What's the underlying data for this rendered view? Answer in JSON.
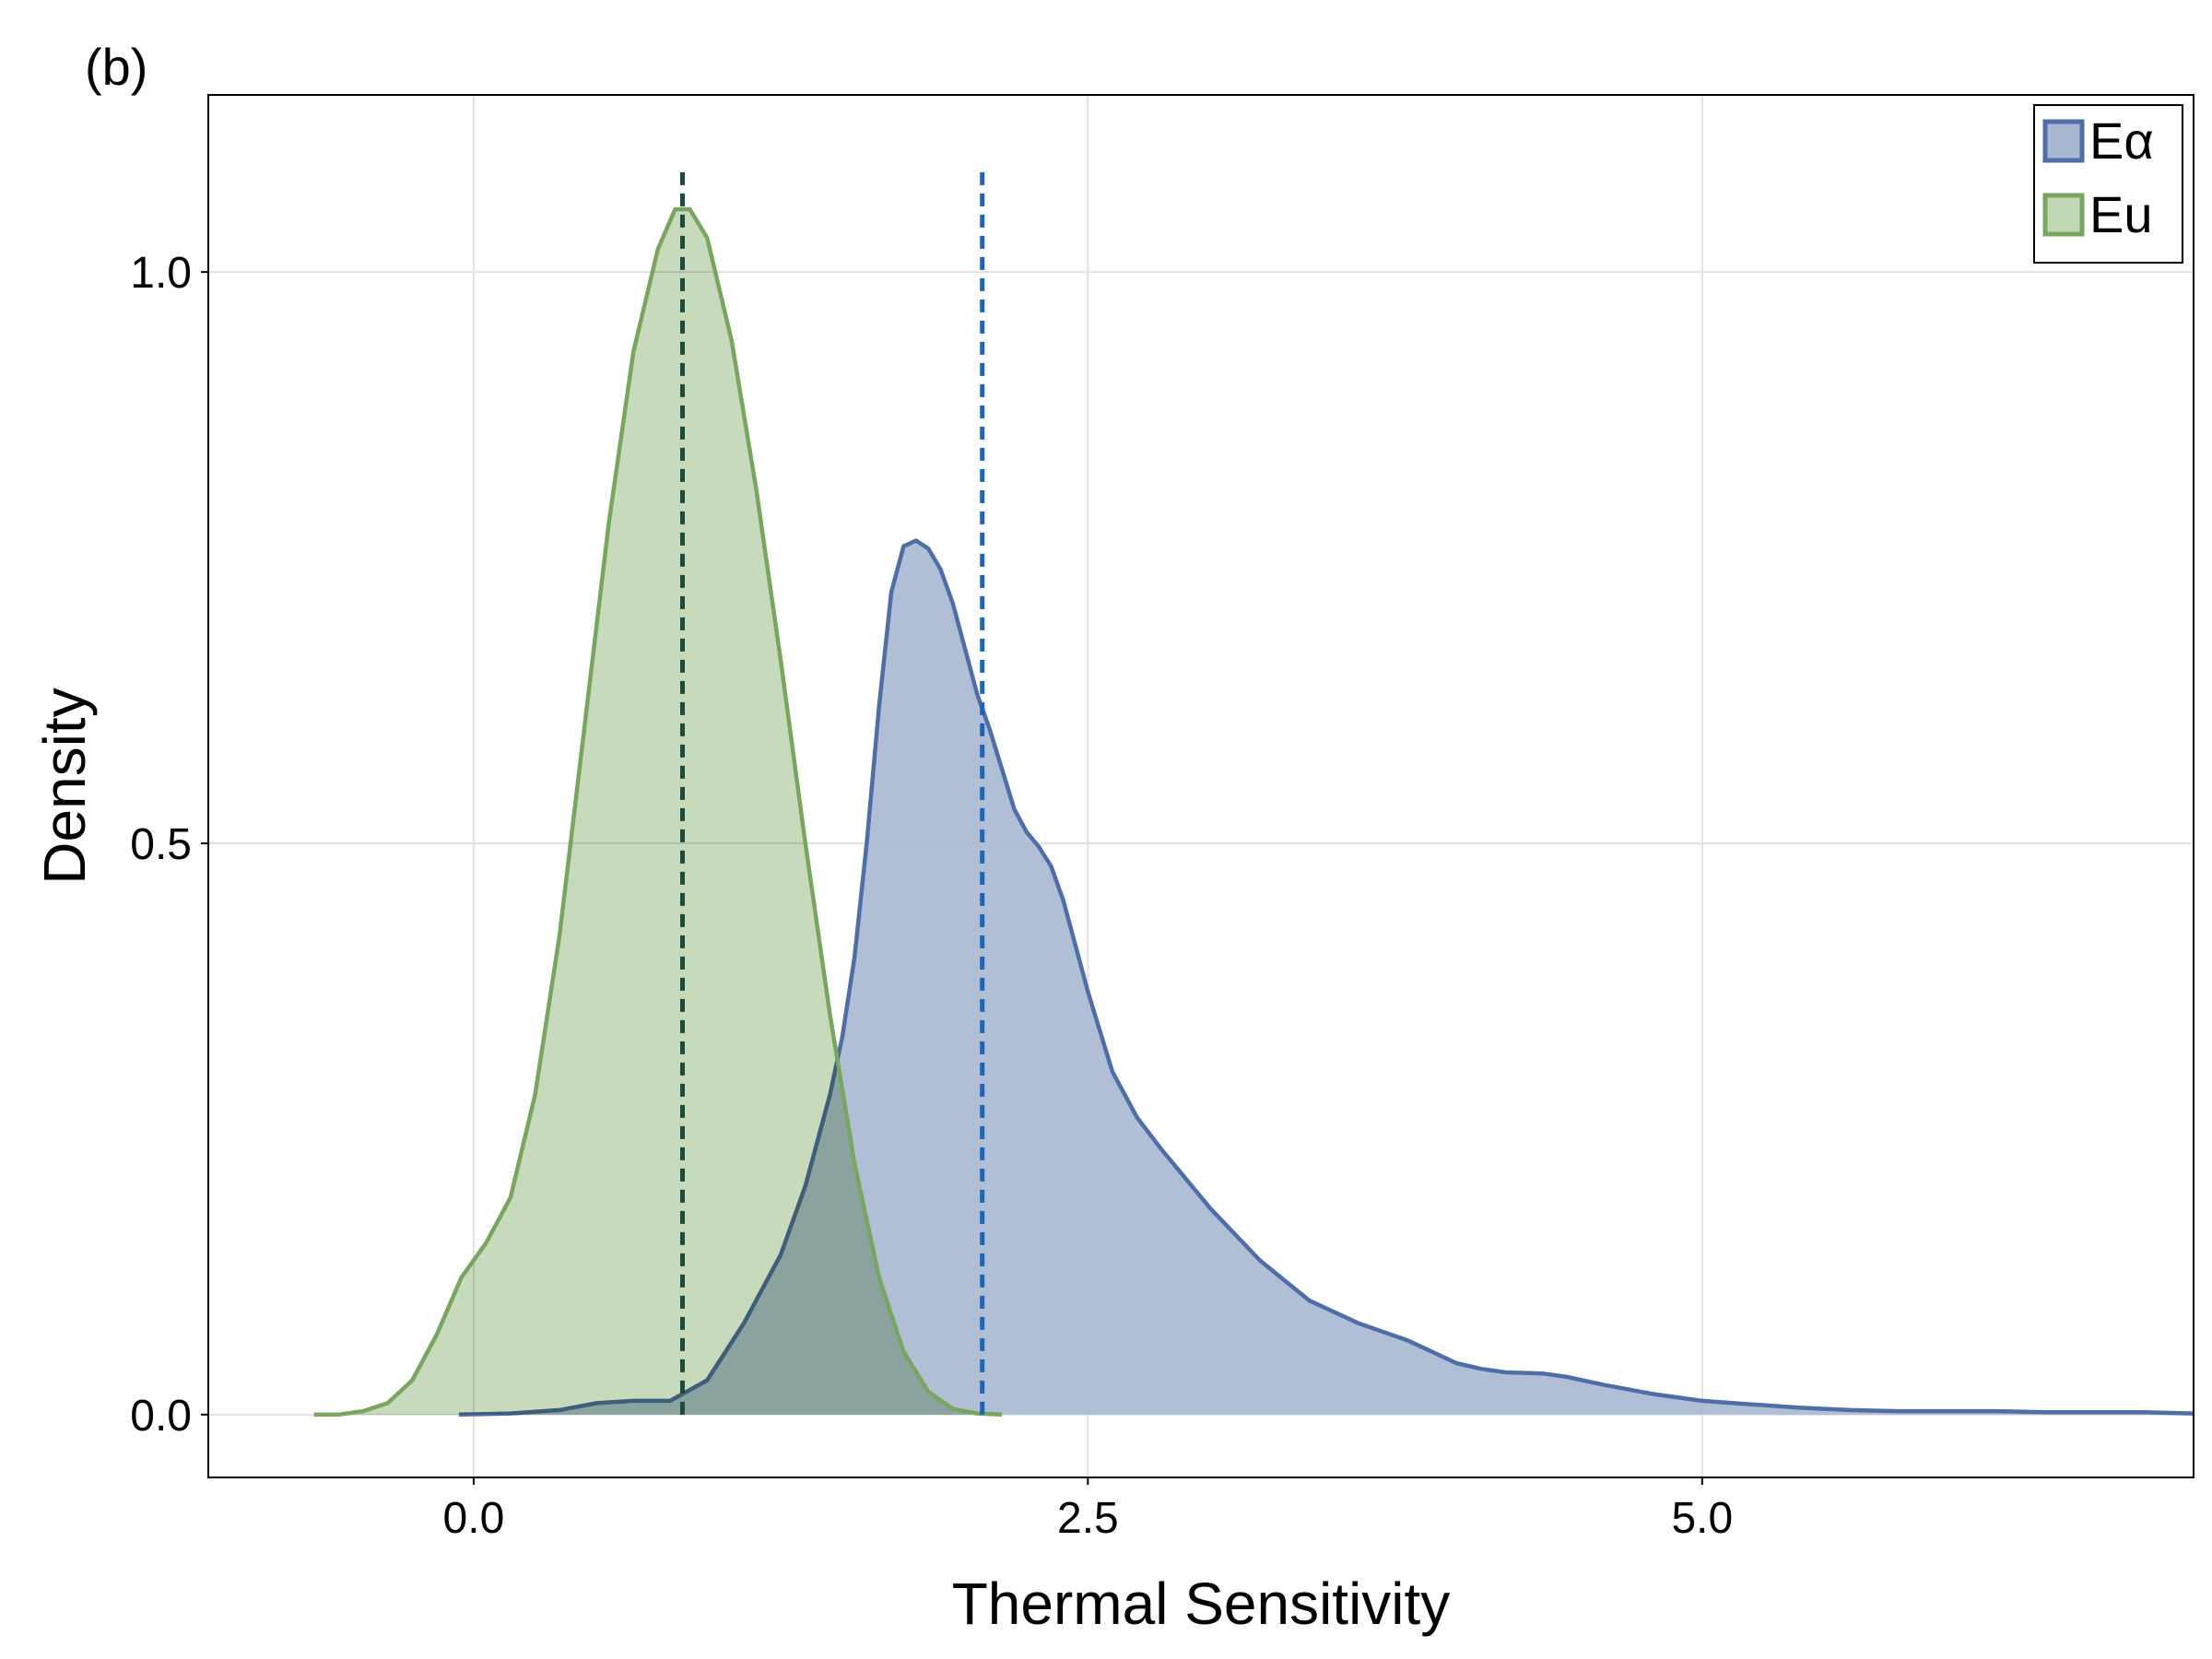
{
  "panel_label": "(b)",
  "chart_data": {
    "type": "area",
    "title": "",
    "xlabel": "Thermal Sensitivity",
    "ylabel": "Density",
    "xlim": [
      -1.08,
      7.0
    ],
    "ylim": [
      -0.055,
      1.155
    ],
    "xticks": [
      0.0,
      2.5,
      5.0
    ],
    "xtick_labels": [
      "0.0",
      "2.5",
      "5.0"
    ],
    "yticks": [
      0.0,
      0.5,
      1.0
    ],
    "ytick_labels": [
      "0.0",
      "0.5",
      "1.0"
    ],
    "grid": true,
    "legend_position": "top-right",
    "series": [
      {
        "name": "Eα",
        "color": "#4f6ea6",
        "fill": "#a8b8d1",
        "mean_line": 2.07,
        "mean_line_color": "#1f63b3",
        "x": [
          -0.06,
          0.15,
          0.35,
          0.5,
          0.65,
          0.8,
          0.95,
          1.1,
          1.25,
          1.35,
          1.45,
          1.5,
          1.55,
          1.6,
          1.65,
          1.7,
          1.75,
          1.8,
          1.85,
          1.9,
          1.95,
          2.0,
          2.05,
          2.1,
          2.15,
          2.2,
          2.25,
          2.3,
          2.35,
          2.4,
          2.5,
          2.6,
          2.7,
          2.8,
          3.0,
          3.2,
          3.4,
          3.6,
          3.8,
          3.9,
          4.0,
          4.1,
          4.2,
          4.35,
          4.45,
          4.6,
          4.8,
          5.0,
          5.2,
          5.4,
          5.6,
          5.8,
          6.0,
          6.2,
          6.4,
          6.6,
          6.8,
          7.0
        ],
        "y": [
          0.0,
          0.001,
          0.004,
          0.01,
          0.012,
          0.012,
          0.03,
          0.08,
          0.14,
          0.2,
          0.28,
          0.33,
          0.4,
          0.5,
          0.62,
          0.72,
          0.76,
          0.765,
          0.758,
          0.74,
          0.71,
          0.67,
          0.63,
          0.6,
          0.565,
          0.53,
          0.51,
          0.497,
          0.48,
          0.45,
          0.37,
          0.3,
          0.26,
          0.232,
          0.18,
          0.135,
          0.1,
          0.08,
          0.065,
          0.055,
          0.045,
          0.04,
          0.037,
          0.036,
          0.033,
          0.026,
          0.018,
          0.012,
          0.009,
          0.006,
          0.004,
          0.003,
          0.003,
          0.003,
          0.002,
          0.002,
          0.002,
          0.001
        ]
      },
      {
        "name": "Eu",
        "color": "#78a661",
        "fill": "#c1d6b5",
        "mean_line": 0.85,
        "mean_line_color": "#1d4a3e",
        "x": [
          -0.65,
          -0.55,
          -0.45,
          -0.35,
          -0.25,
          -0.15,
          -0.05,
          0.05,
          0.15,
          0.25,
          0.35,
          0.45,
          0.55,
          0.65,
          0.75,
          0.82,
          0.88,
          0.95,
          1.05,
          1.15,
          1.25,
          1.35,
          1.45,
          1.55,
          1.65,
          1.75,
          1.85,
          1.95,
          2.05,
          2.15
        ],
        "y": [
          0.0,
          0.0,
          0.003,
          0.01,
          0.03,
          0.07,
          0.12,
          0.15,
          0.19,
          0.28,
          0.42,
          0.6,
          0.78,
          0.93,
          1.02,
          1.055,
          1.055,
          1.03,
          0.94,
          0.81,
          0.66,
          0.5,
          0.35,
          0.22,
          0.12,
          0.055,
          0.02,
          0.005,
          0.001,
          0.0
        ]
      }
    ]
  }
}
